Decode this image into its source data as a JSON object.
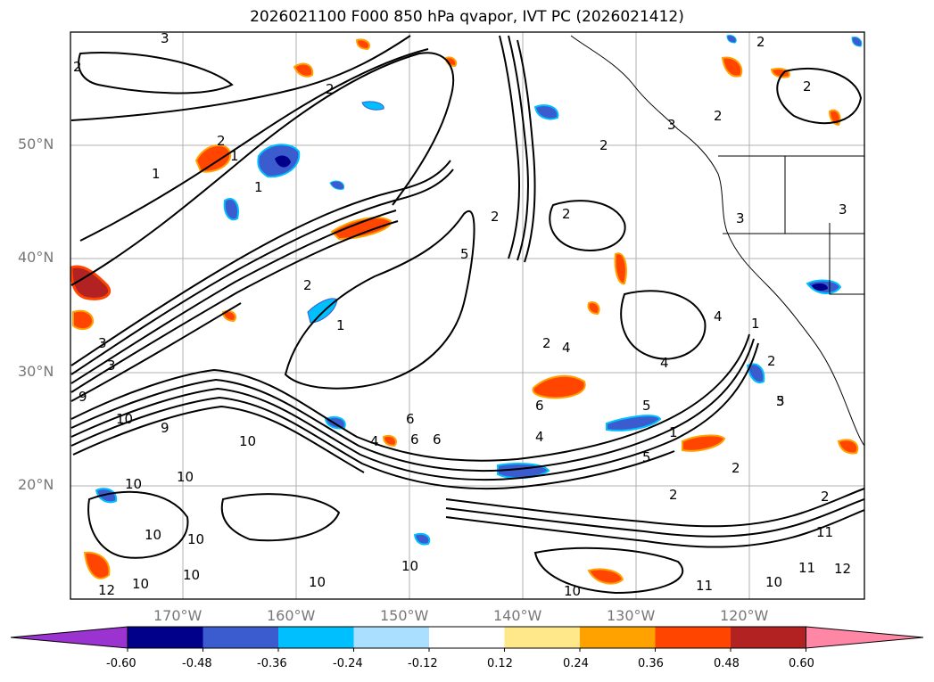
{
  "title": "2026021100 F000 850 hPa qvapor, IVT PC (2026021412)",
  "map": {
    "latitude_labels": [
      "50°N",
      "40°N",
      "30°N",
      "20°N"
    ],
    "longitude_labels": [
      "170°W",
      "160°W",
      "150°W",
      "140°W",
      "130°W",
      "120°W"
    ],
    "contour_labels": [
      "3",
      "2",
      "2",
      "2",
      "1",
      "2",
      "2",
      "1",
      "3",
      "3",
      "5",
      "2",
      "2",
      "3",
      "2",
      "3",
      "2",
      "3",
      "1",
      "2",
      "5",
      "1",
      "2",
      "4",
      "2",
      "4",
      "6",
      "6",
      "4",
      "4",
      "5",
      "6",
      "5",
      "6",
      "2",
      "1",
      "4",
      "2",
      "3",
      "9",
      "9",
      "10",
      "10",
      "10",
      "10",
      "10",
      "10",
      "10",
      "10",
      "10",
      "10",
      "10",
      "11",
      "11",
      "10",
      "11",
      "12",
      "12",
      "2",
      "1"
    ]
  },
  "colorbar": {
    "tick_labels": [
      "-0.60",
      "-0.48",
      "-0.36",
      "-0.24",
      "-0.12",
      "0.12",
      "0.24",
      "0.36",
      "0.48",
      "0.60"
    ],
    "colors": [
      "#9a33d0",
      "#00008b",
      "#3a5ccf",
      "#00bfff",
      "#aadfff",
      "#ffffff",
      "#ffe88a",
      "#ffa200",
      "#ff4500",
      "#b22222",
      "#ff86a5"
    ]
  }
}
